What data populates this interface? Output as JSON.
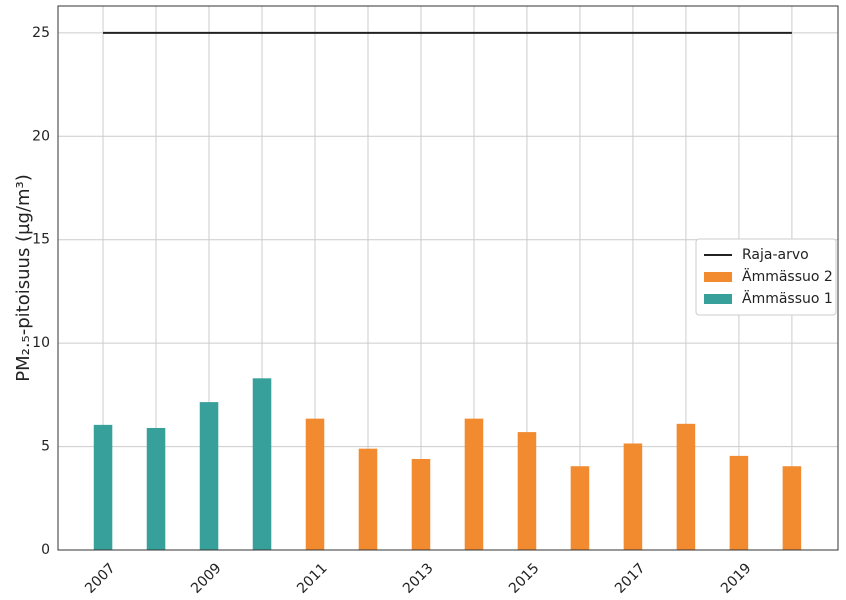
{
  "chart_data": {
    "type": "bar",
    "y_label": "PM₂.₅-pitoisuus (µg/m³)",
    "xlim": [
      2006.15,
      2020.87
    ],
    "xticks": [
      2007,
      2009,
      2011,
      2013,
      2015,
      2017,
      2019
    ],
    "ylim": [
      0,
      26.3
    ],
    "yticks": [
      0,
      5,
      10,
      15,
      20,
      25
    ],
    "grid": true,
    "legend": "center right",
    "series": [
      {
        "name": "Raja-arvo",
        "type": "line",
        "color": "#222222",
        "x": [
          2007,
          2020
        ],
        "values": [
          25,
          25
        ]
      },
      {
        "name": "Ämmässuo 2",
        "type": "bar",
        "color": "#f28a30",
        "x": [
          2011,
          2012,
          2013,
          2014,
          2015,
          2016,
          2017,
          2018,
          2019,
          2020
        ],
        "values": [
          6.35,
          4.9,
          4.4,
          6.35,
          5.7,
          4.05,
          5.15,
          6.1,
          4.55,
          4.05
        ]
      },
      {
        "name": "Ämmässuo 1",
        "type": "bar",
        "color": "#38a09a",
        "x": [
          2007,
          2008,
          2009,
          2010
        ],
        "values": [
          6.05,
          5.9,
          7.15,
          8.3
        ]
      }
    ]
  }
}
